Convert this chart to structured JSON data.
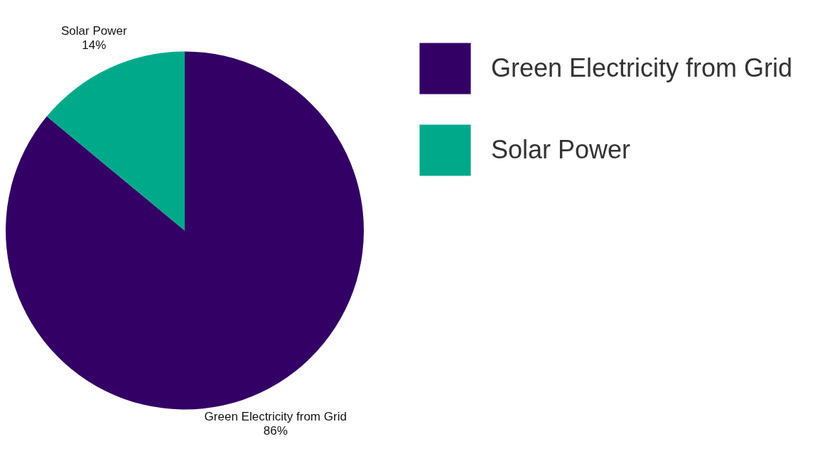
{
  "chart_data": {
    "type": "pie",
    "categories": [
      "Green Electricity from Grid",
      "Solar Power"
    ],
    "values": [
      86,
      14
    ],
    "colors": [
      "#330066",
      "#00a98a"
    ],
    "value_labels": [
      "86%",
      "14%"
    ],
    "legend": "top right"
  }
}
